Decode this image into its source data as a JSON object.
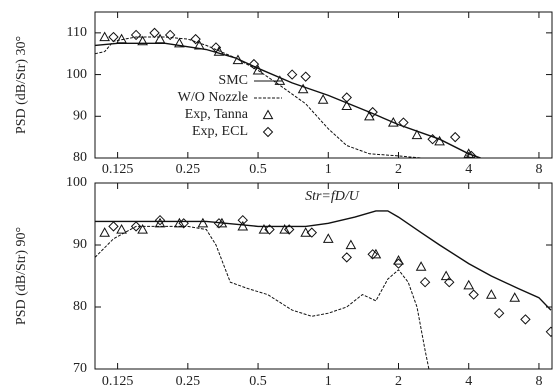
{
  "chart_data": [
    {
      "type": "line",
      "ylabel": "PSD (dB/Str) 30°",
      "xscale": "log",
      "legend": "lower left",
      "xlim": [
        0.1,
        9.1
      ],
      "ylim": [
        80,
        115
      ],
      "xticks": [
        0.125,
        0.25,
        0.5,
        1,
        2,
        4,
        8
      ],
      "yticks": [
        80,
        90,
        100,
        110
      ],
      "series": [
        {
          "name": "SMC",
          "style": "solid",
          "color": "#111",
          "x": [
            0.1,
            0.125,
            0.2,
            0.3,
            0.4,
            0.5,
            0.7,
            1,
            1.5,
            2,
            3,
            4,
            4.5
          ],
          "values": [
            107,
            107.5,
            107.5,
            106,
            104,
            101.5,
            98,
            95,
            91,
            88,
            84.5,
            81,
            80
          ]
        },
        {
          "name": "W/O Nozzle",
          "style": "dashed",
          "color": "#111",
          "x": [
            0.1,
            0.11,
            0.12,
            0.15,
            0.2,
            0.25,
            0.3,
            0.4,
            0.5,
            0.6,
            0.8,
            1.0,
            1.2,
            1.5,
            2,
            2.5
          ],
          "values": [
            105,
            105.5,
            108,
            109,
            109,
            108.5,
            107,
            104,
            101,
            98,
            93,
            87,
            83,
            81,
            80.5,
            80
          ]
        },
        {
          "name": "Exp, Tanna",
          "style": "triangle",
          "color": "#111",
          "x": [
            0.11,
            0.13,
            0.16,
            0.19,
            0.23,
            0.28,
            0.34,
            0.41,
            0.5,
            0.62,
            0.78,
            0.95,
            1.2,
            1.5,
            1.9,
            2.4,
            3.0,
            4.0
          ],
          "values": [
            109,
            108.5,
            108,
            108.5,
            107.5,
            107,
            105.5,
            103.5,
            101,
            98.5,
            96.5,
            94,
            92.5,
            90,
            88.5,
            85.5,
            84,
            81
          ]
        },
        {
          "name": "Exp, ECL",
          "style": "diamond",
          "color": "#111",
          "x": [
            0.12,
            0.15,
            0.18,
            0.21,
            0.27,
            0.33,
            0.48,
            0.7,
            0.8,
            1.2,
            1.55,
            2.1,
            2.8,
            3.5,
            4.1
          ],
          "values": [
            109,
            109.5,
            110,
            109.5,
            108.5,
            106.5,
            102.5,
            100,
            99.5,
            94.5,
            91,
            88.5,
            84.5,
            85,
            80.5
          ]
        }
      ]
    },
    {
      "type": "line",
      "ylabel": "PSD (dB/Str) 90°",
      "xlabel": "Str=fD/U",
      "xscale": "log",
      "xlim": [
        0.1,
        9.1
      ],
      "ylim": [
        70,
        100
      ],
      "xticks": [
        0.125,
        0.25,
        0.5,
        1,
        2,
        4,
        8
      ],
      "yticks": [
        70,
        80,
        90,
        100
      ],
      "series": [
        {
          "style": "solid",
          "color": "#111",
          "x": [
            0.1,
            0.3,
            0.5,
            0.8,
            1.0,
            1.3,
            1.6,
            1.8,
            2.0,
            2.5,
            3,
            4,
            5,
            6.5,
            8,
            9
          ],
          "values": [
            93.8,
            93.8,
            93,
            93,
            93.5,
            94.5,
            95.5,
            95.5,
            94.5,
            92,
            90,
            87,
            85,
            83,
            81.5,
            79.5
          ]
        },
        {
          "style": "dashed",
          "color": "#111",
          "x": [
            0.1,
            0.12,
            0.15,
            0.25,
            0.3,
            0.33,
            0.38,
            0.45,
            0.55,
            0.7,
            0.85,
            1.0,
            1.2,
            1.4,
            1.6,
            1.8,
            2.0,
            2.2,
            2.4,
            2.6,
            2.7
          ],
          "values": [
            88,
            91,
            93,
            93,
            92.5,
            90,
            84,
            83,
            82,
            79.5,
            78.5,
            79,
            80,
            82,
            81,
            84.5,
            86,
            84,
            80,
            73,
            70
          ]
        },
        {
          "style": "triangle",
          "color": "#111",
          "x": [
            0.11,
            0.13,
            0.16,
            0.19,
            0.23,
            0.29,
            0.35,
            0.43,
            0.53,
            0.65,
            0.8,
            1.0,
            1.25,
            1.6,
            2.0,
            2.5,
            3.2,
            4.0,
            5.0,
            6.3
          ],
          "values": [
            92,
            92.5,
            92.5,
            93.5,
            93.5,
            93.5,
            93.5,
            93,
            92.5,
            92.5,
            92,
            91,
            90,
            88.5,
            87.5,
            86.5,
            85,
            83.5,
            82,
            81.5
          ]
        },
        {
          "style": "diamond",
          "color": "#111",
          "x": [
            0.12,
            0.15,
            0.19,
            0.24,
            0.34,
            0.43,
            0.56,
            0.68,
            0.85,
            1.2,
            1.55,
            2.0,
            2.6,
            3.3,
            4.2,
            5.4,
            7,
            9
          ],
          "values": [
            93,
            93,
            94,
            93.5,
            93.5,
            94,
            92.5,
            92.5,
            92,
            88,
            88.5,
            87,
            84,
            84,
            82,
            79,
            78,
            76
          ]
        }
      ]
    }
  ]
}
